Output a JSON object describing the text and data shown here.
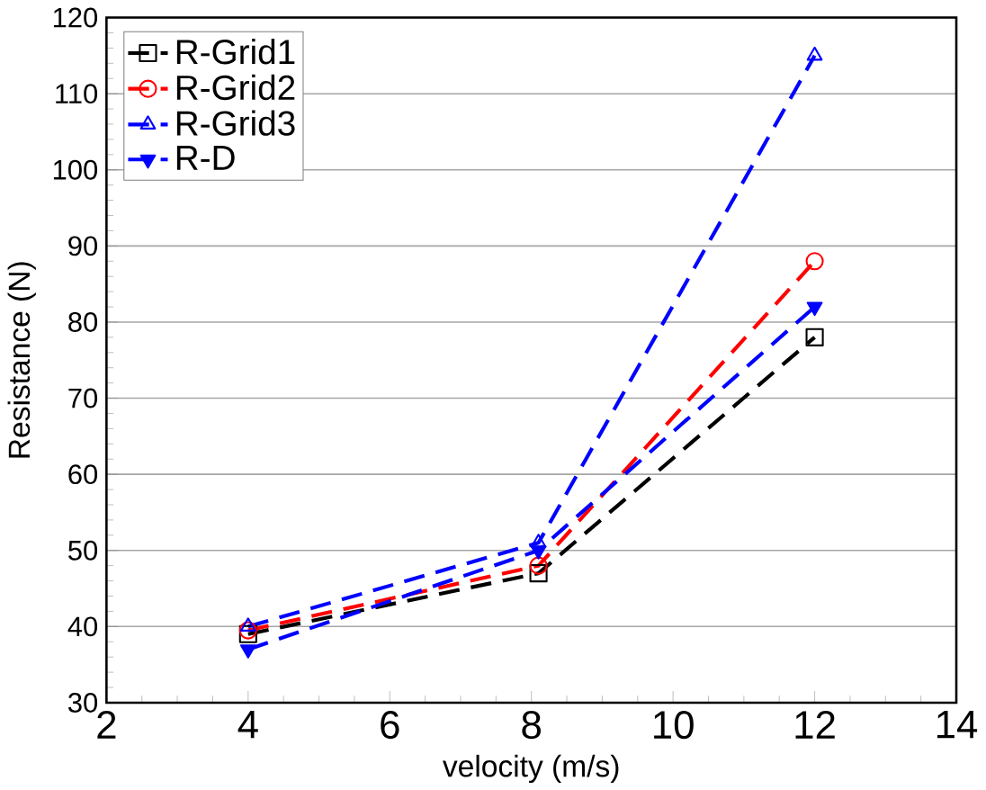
{
  "chart_data": {
    "type": "line",
    "xlabel": "velocity  (m/s)",
    "ylabel": "Resistance  (N)",
    "xlim": [
      2,
      14
    ],
    "xticks": [
      2,
      4,
      6,
      8,
      10,
      12,
      14
    ],
    "ylim": [
      30,
      120
    ],
    "yticks": [
      30,
      40,
      50,
      60,
      70,
      80,
      90,
      100,
      110,
      120
    ],
    "x": [
      4,
      8.1,
      12
    ],
    "series": [
      {
        "name": "R-Grid1",
        "color": "#000000",
        "marker": "square",
        "values": [
          39,
          47,
          78
        ]
      },
      {
        "name": "R-Grid2",
        "color": "#ff0000",
        "marker": "circle",
        "values": [
          39.5,
          48,
          88
        ]
      },
      {
        "name": "R-Grid3",
        "color": "#0000ff",
        "marker": "triangle",
        "values": [
          40,
          51,
          115
        ]
      },
      {
        "name": "R-D",
        "color": "#0000ff",
        "marker": "triangle-down-filled",
        "values": [
          37,
          50,
          82
        ]
      }
    ],
    "grid": "y",
    "legend": "top left",
    "line_style": "dashed"
  }
}
